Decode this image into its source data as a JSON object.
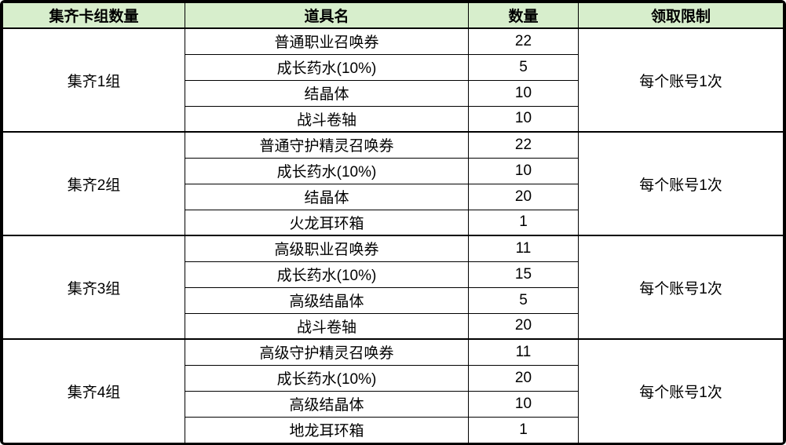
{
  "table": {
    "columns": [
      {
        "label": "集齐卡组数量"
      },
      {
        "label": "道具名"
      },
      {
        "label": "数量"
      },
      {
        "label": "领取限制"
      }
    ],
    "header_bg": "#d7eecc",
    "border_color": "#000000",
    "groups": [
      {
        "name": "集齐1组",
        "limit": "每个账号1次",
        "items": [
          {
            "item": "普通职业召唤券",
            "qty": "22"
          },
          {
            "item": "成长药水(10%)",
            "qty": "5"
          },
          {
            "item": "结晶体",
            "qty": "10"
          },
          {
            "item": "战斗卷轴",
            "qty": "10"
          }
        ]
      },
      {
        "name": "集齐2组",
        "limit": "每个账号1次",
        "items": [
          {
            "item": "普通守护精灵召唤券",
            "qty": "22"
          },
          {
            "item": "成长药水(10%)",
            "qty": "10"
          },
          {
            "item": "结晶体",
            "qty": "20"
          },
          {
            "item": "火龙耳环箱",
            "qty": "1"
          }
        ]
      },
      {
        "name": "集齐3组",
        "limit": "每个账号1次",
        "items": [
          {
            "item": "高级职业召唤券",
            "qty": "11"
          },
          {
            "item": "成长药水(10%)",
            "qty": "15"
          },
          {
            "item": "高级结晶体",
            "qty": "5"
          },
          {
            "item": "战斗卷轴",
            "qty": "20"
          }
        ]
      },
      {
        "name": "集齐4组",
        "limit": "每个账号1次",
        "items": [
          {
            "item": "高级守护精灵召唤券",
            "qty": "11"
          },
          {
            "item": "成长药水(10%)",
            "qty": "20"
          },
          {
            "item": "高级结晶体",
            "qty": "10"
          },
          {
            "item": "地龙耳环箱",
            "qty": "1"
          }
        ]
      }
    ]
  }
}
